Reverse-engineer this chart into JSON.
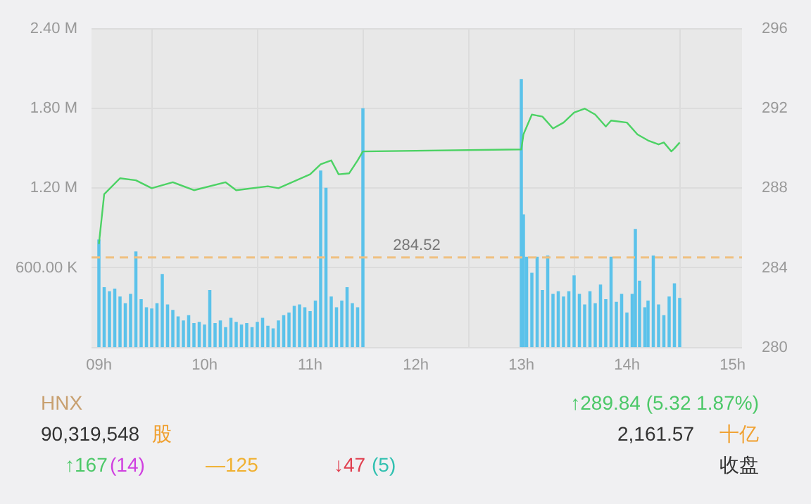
{
  "chart_data": {
    "type": "bar",
    "xlim": [
      8.93,
      15.09
    ],
    "xticks": [
      {
        "value": 9,
        "label": "09h"
      },
      {
        "value": 10,
        "label": "10h"
      },
      {
        "value": 11,
        "label": "11h"
      },
      {
        "value": 12,
        "label": "12h"
      },
      {
        "value": 13,
        "label": "13h"
      },
      {
        "value": 14,
        "label": "14h"
      },
      {
        "value": 15,
        "label": "15h"
      }
    ],
    "ylim": [
      0,
      2400000
    ],
    "yticks": [
      {
        "value": 0,
        "label": null
      },
      {
        "value": 600000,
        "label": "600.00 K"
      },
      {
        "value": 1200000,
        "label": "1.20 M"
      },
      {
        "value": 1800000,
        "label": "1.80 M"
      },
      {
        "value": 2400000,
        "label": "2.40 M"
      }
    ],
    "y2lim": [
      280,
      296
    ],
    "y2ticks": [
      280,
      284,
      288,
      292,
      296
    ],
    "grid": true,
    "legend": false,
    "series": [
      {
        "axis": "y",
        "color": "#5bc2ea",
        "x": [
          9.0,
          9.05,
          9.1,
          9.15,
          9.2,
          9.25,
          9.3,
          9.35,
          9.4,
          9.45,
          9.5,
          9.55,
          9.6,
          9.65,
          9.7,
          9.75,
          9.8,
          9.85,
          9.9,
          9.95,
          10.0,
          10.05,
          10.1,
          10.15,
          10.2,
          10.25,
          10.3,
          10.35,
          10.4,
          10.45,
          10.5,
          10.55,
          10.6,
          10.65,
          10.7,
          10.75,
          10.8,
          10.85,
          10.9,
          10.95,
          11.0,
          11.05,
          11.1,
          11.15,
          11.2,
          11.25,
          11.3,
          11.35,
          11.4,
          11.45,
          11.5,
          13.0,
          13.02,
          13.05,
          13.1,
          13.15,
          13.2,
          13.25,
          13.3,
          13.35,
          13.4,
          13.45,
          13.5,
          13.55,
          13.6,
          13.65,
          13.7,
          13.75,
          13.8,
          13.85,
          13.9,
          13.95,
          14.0,
          14.05,
          14.08,
          14.12,
          14.17,
          14.2,
          14.25,
          14.3,
          14.35,
          14.4,
          14.45,
          14.5
        ],
        "values": [
          810000,
          450000,
          420000,
          440000,
          380000,
          330000,
          400000,
          720000,
          360000,
          300000,
          290000,
          330000,
          550000,
          320000,
          280000,
          230000,
          200000,
          240000,
          180000,
          190000,
          170000,
          430000,
          180000,
          200000,
          150000,
          220000,
          190000,
          170000,
          180000,
          150000,
          190000,
          220000,
          160000,
          140000,
          200000,
          240000,
          260000,
          310000,
          320000,
          300000,
          270000,
          350000,
          1330000,
          1200000,
          380000,
          300000,
          350000,
          450000,
          330000,
          300000,
          1800000,
          2020000,
          1000000,
          680000,
          560000,
          680000,
          430000,
          690000,
          400000,
          420000,
          380000,
          420000,
          540000,
          400000,
          320000,
          420000,
          330000,
          470000,
          360000,
          680000,
          340000,
          400000,
          260000,
          400000,
          890000,
          500000,
          300000,
          350000,
          690000,
          320000,
          240000,
          380000,
          480000,
          370000
        ]
      },
      {
        "type": "line",
        "axis": "y2",
        "color": "#4cd264",
        "marker": "none",
        "x": [
          9.0,
          9.05,
          9.2,
          9.35,
          9.5,
          9.7,
          9.9,
          10.2,
          10.3,
          10.6,
          10.7,
          11.0,
          11.1,
          11.2,
          11.27,
          11.37,
          11.45,
          11.5,
          13.0,
          13.02,
          13.1,
          13.2,
          13.3,
          13.4,
          13.5,
          13.6,
          13.7,
          13.8,
          13.85,
          14.0,
          14.1,
          14.2,
          14.3,
          14.35,
          14.42,
          14.45,
          14.5
        ],
        "values": [
          285.2,
          287.7,
          288.5,
          288.4,
          288.0,
          288.3,
          287.9,
          288.3,
          287.9,
          288.1,
          288.0,
          288.7,
          289.2,
          289.4,
          288.7,
          288.75,
          289.4,
          289.85,
          289.95,
          290.7,
          291.7,
          291.6,
          291.0,
          291.3,
          291.8,
          292.0,
          291.7,
          291.1,
          291.4,
          291.3,
          290.7,
          290.4,
          290.2,
          290.3,
          289.85,
          290.0,
          290.3
        ]
      }
    ],
    "ref_lines": [
      {
        "axis": "y2",
        "value": 284.52,
        "label": "284.52",
        "color": "#f0c080",
        "line_style": "dashed"
      }
    ],
    "annotations": [
      "HNX",
      "↑289.84 (5.32 1.87%)",
      "90,319,548",
      "股",
      "2,161.57",
      "十亿",
      "↑167",
      "(14)",
      "—125",
      "↓47",
      "(5)",
      "收盘"
    ]
  }
}
